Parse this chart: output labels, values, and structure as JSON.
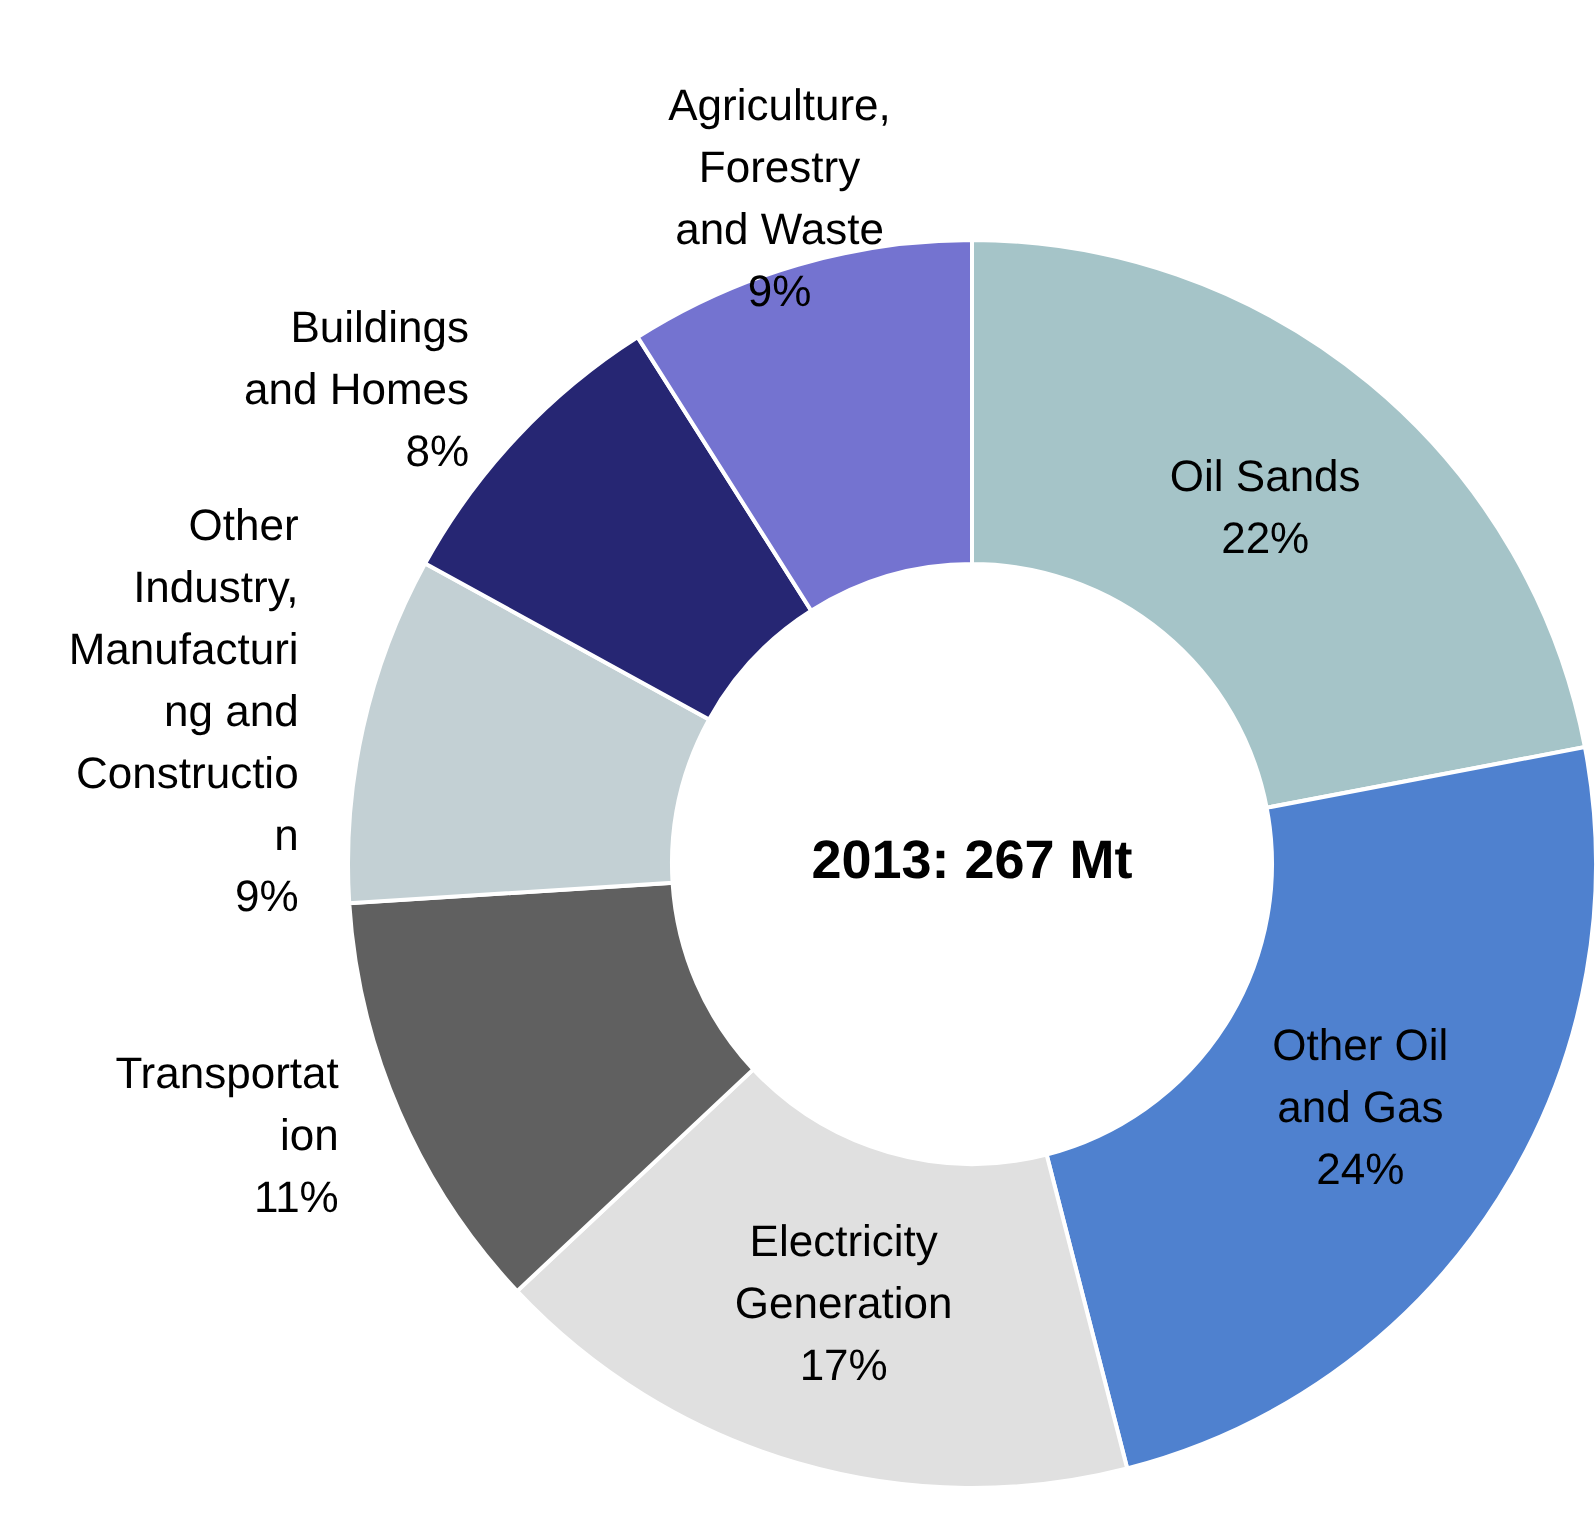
{
  "chart_data": {
    "type": "donut",
    "categories": [
      "Oil Sands",
      "Other Oil\nand Gas",
      "Electricity\nGeneration",
      "Transportat\nion",
      "Other\nIndustry,\nManufacturi\nng and\nConstructio\nn",
      "Buildings\nand Homes",
      "Agriculture,\nForestry\nand Waste"
    ],
    "values": [
      22,
      24,
      17,
      11,
      9,
      8,
      9
    ],
    "colors": [
      "#a5c4c8",
      "#4f81cf",
      "#e0e0e0",
      "#606060",
      "#c3d0d4",
      "#262673",
      "#7473d0"
    ],
    "value_labels": [
      "22%",
      "24%",
      "17%",
      "11%",
      "9%",
      "8%",
      "9%"
    ],
    "annotations": [
      "2013: 267 Mt"
    ]
  }
}
